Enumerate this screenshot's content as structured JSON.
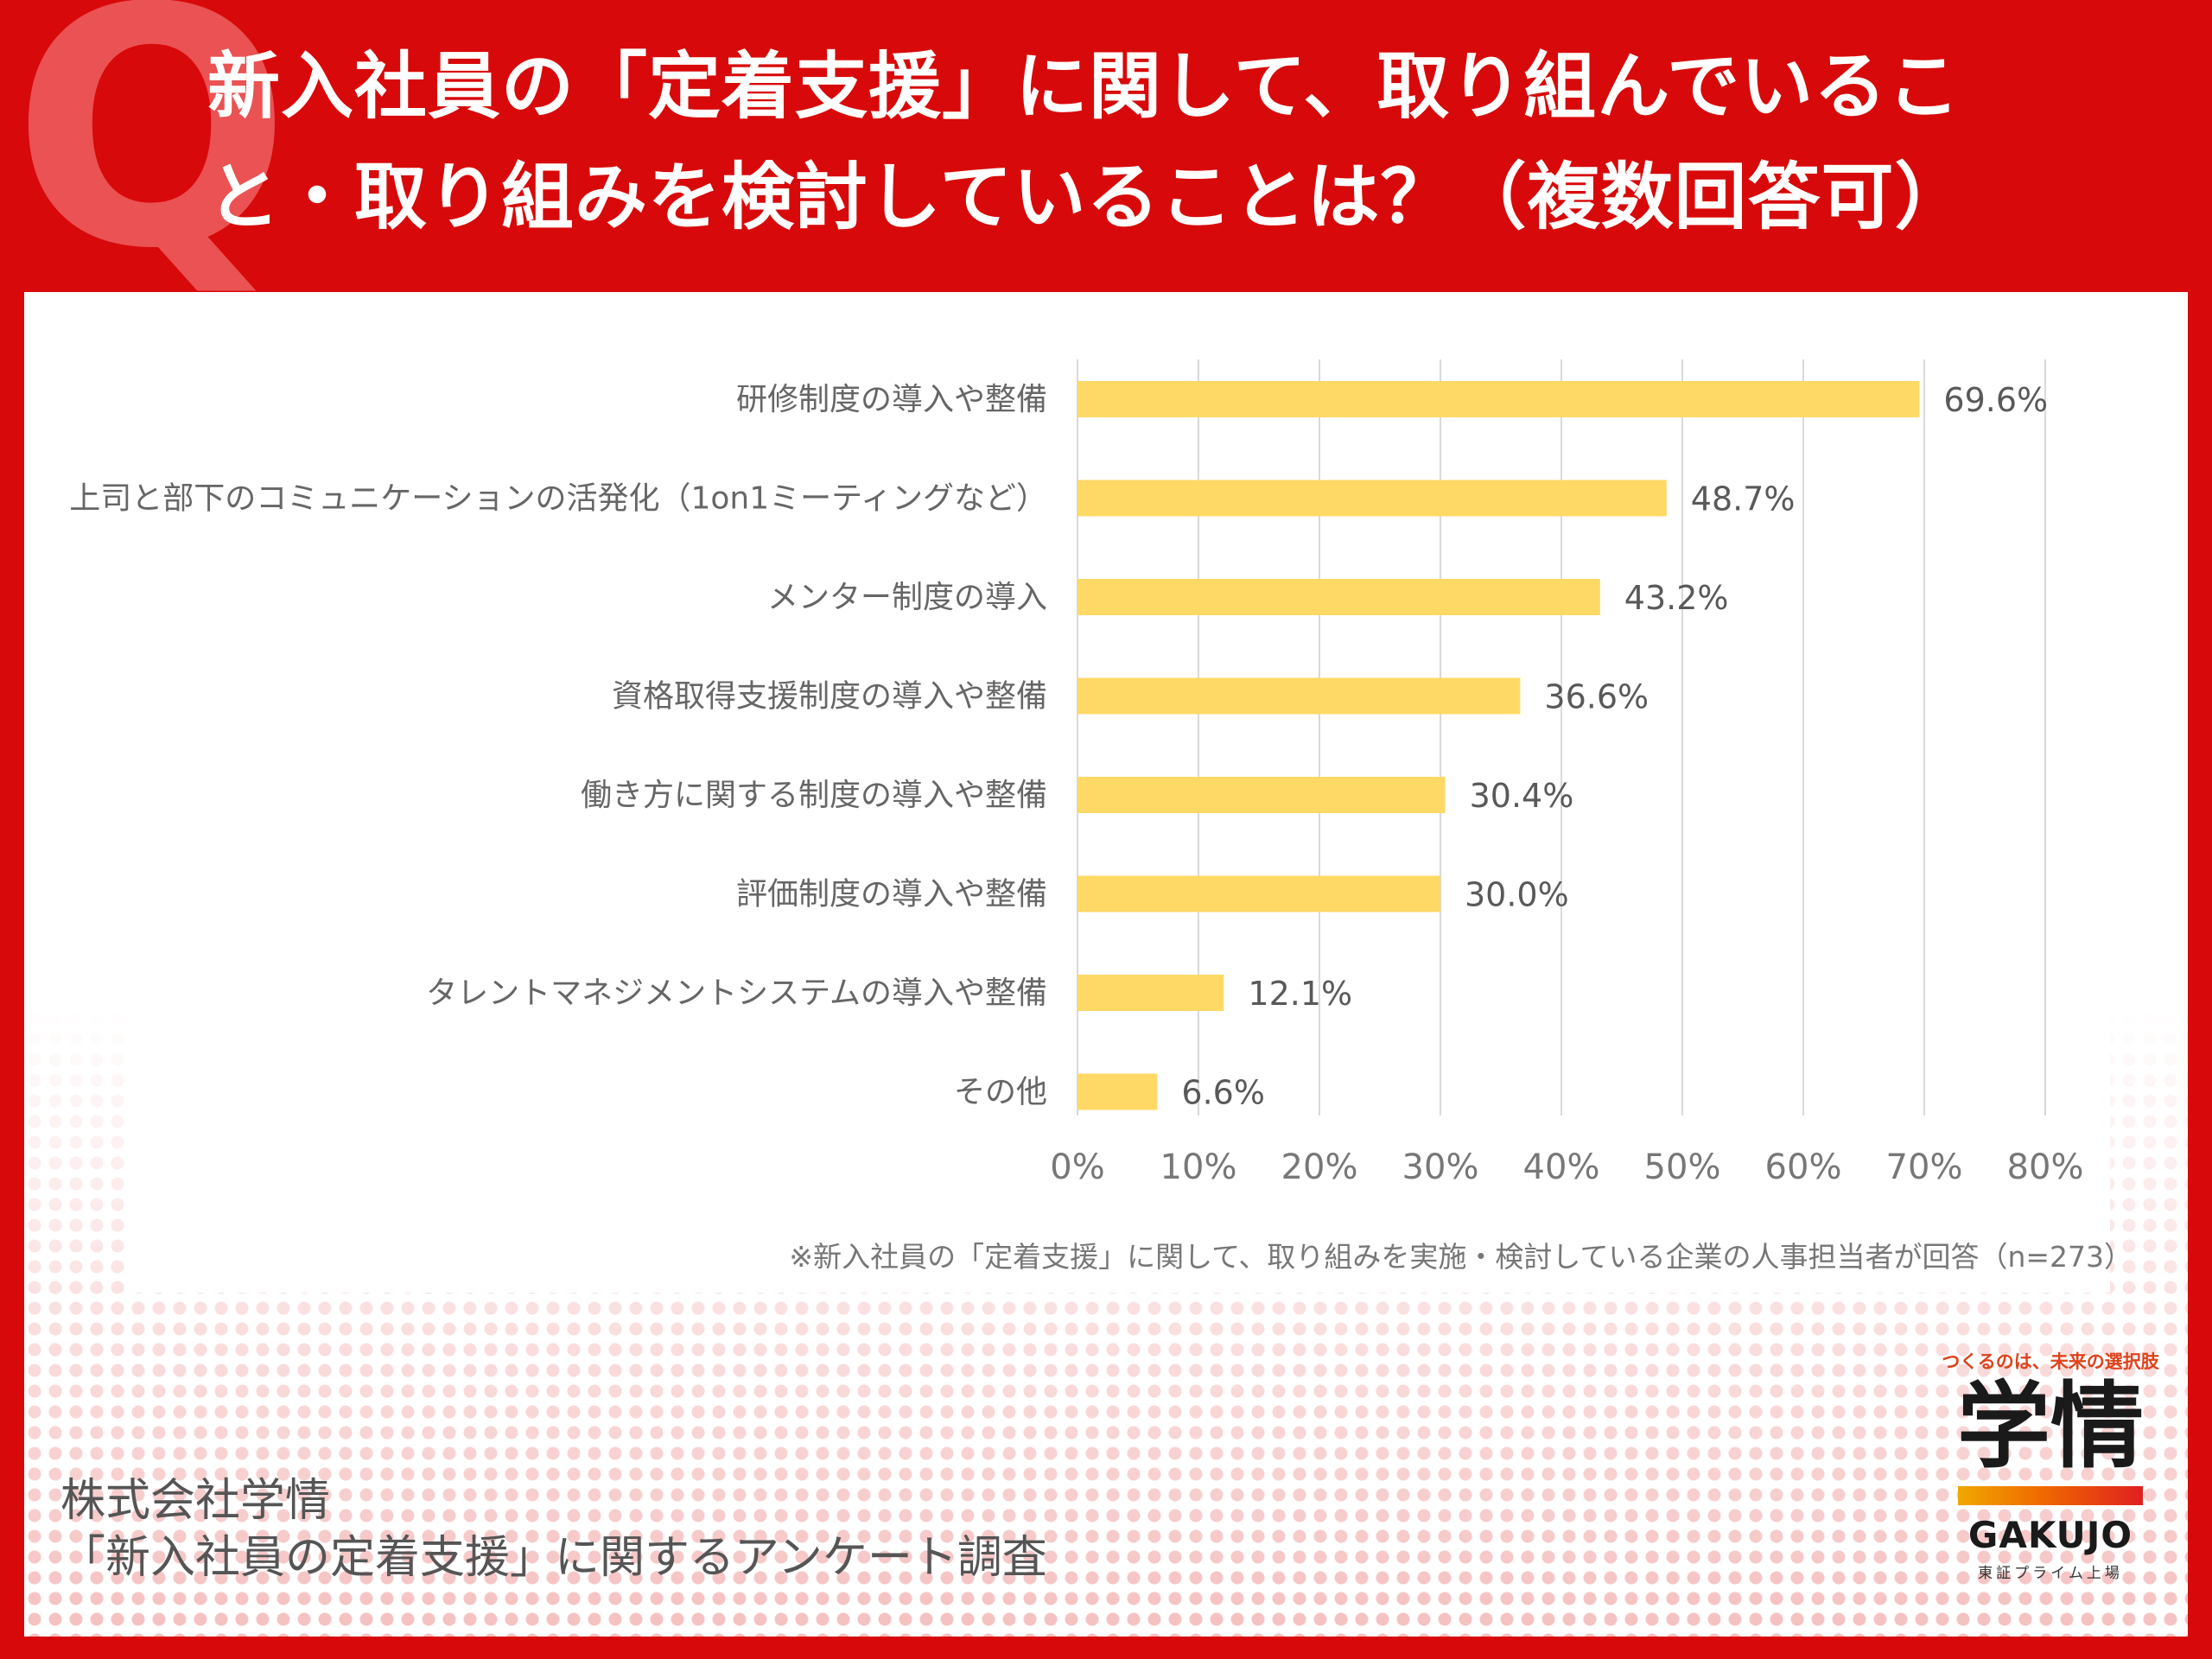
{
  "header": {
    "badge": "Q",
    "title_line1": "新入社員の「定着支援」に関して、取り組んでいるこ",
    "title_line2": "と・取り組みを検討していることは？（複数回答可）"
  },
  "chart_data": {
    "type": "bar",
    "orientation": "horizontal",
    "categories": [
      "研修制度の導入や整備",
      "上司と部下のコミュニケーションの活発化（1on1ミーティングなど）",
      "メンター制度の導入",
      "資格取得支援制度の導入や整備",
      "働き方に関する制度の導入や整備",
      "評価制度の導入や整備",
      "タレントマネジメントシステムの導入や整備",
      "その他"
    ],
    "values": [
      69.6,
      48.7,
      43.2,
      36.6,
      30.4,
      30.0,
      12.1,
      6.6
    ],
    "value_labels": [
      "69.6%",
      "48.7%",
      "43.2%",
      "36.6%",
      "30.4%",
      "30.0%",
      "12.1%",
      "6.6%"
    ],
    "x_ticks": [
      0,
      10,
      20,
      30,
      40,
      50,
      60,
      70,
      80
    ],
    "x_tick_labels": [
      "0%",
      "10%",
      "20%",
      "30%",
      "40%",
      "50%",
      "60%",
      "70%",
      "80%"
    ],
    "xlim": [
      0,
      80
    ],
    "grid": true,
    "bar_color": "#ffd966",
    "note": "※新入社員の「定着支援」に関して、取り組みを実施・検討している企業の人事担当者が回答（n=273）"
  },
  "footer": {
    "company_line1": "株式会社学情",
    "company_line2": "「新入社員の定着支援」に関するアンケート調査"
  },
  "logo": {
    "tagline": "つくるのは、未来の選択肢",
    "kanji": "学情",
    "name": "GAKUJO",
    "sub": "東証プライム上場"
  },
  "colors": {
    "background_red": "#d8090a",
    "accent_orange": "#f06a00"
  }
}
